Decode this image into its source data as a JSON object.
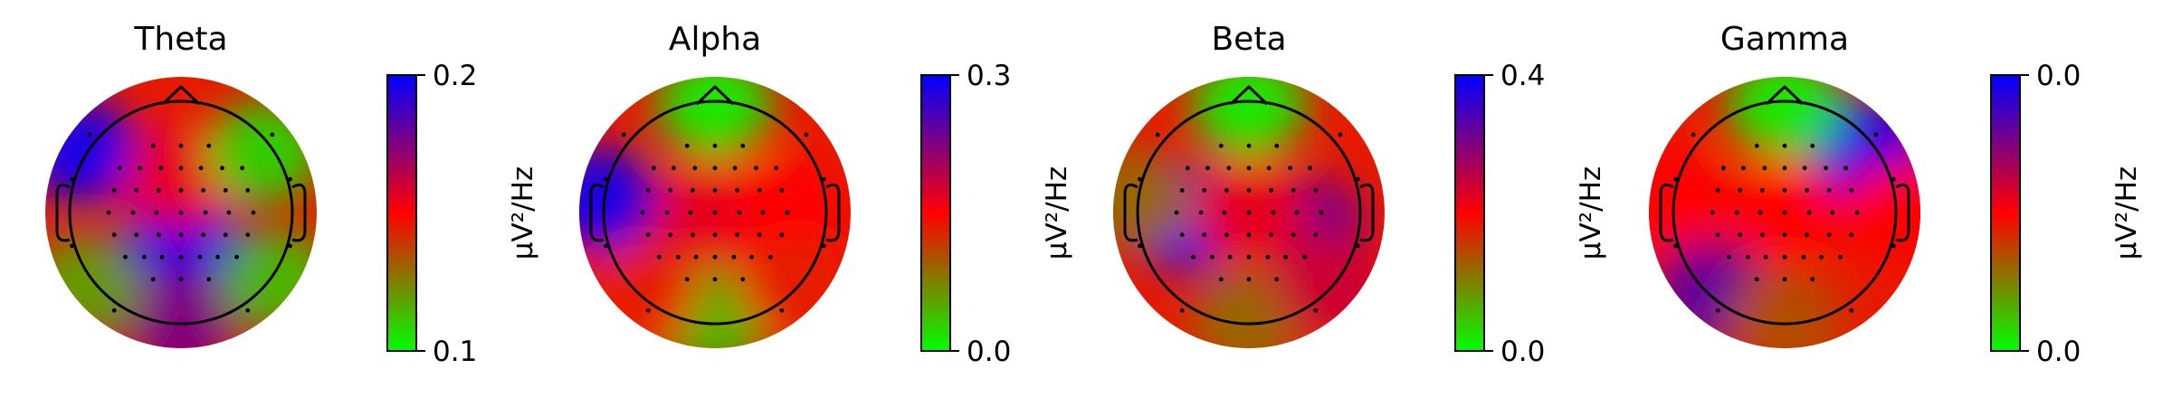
{
  "chart_data": [
    {
      "type": "heatmap",
      "subtype": "scalp-topomap",
      "title": "Theta",
      "colorbar": {
        "min": "0.1",
        "max": "0.2",
        "unit": "µV²/Hz"
      },
      "hotspots": [
        {
          "region": "left-frontal",
          "level": 0.95
        },
        {
          "region": "center-parietal",
          "level": 0.95
        },
        {
          "region": "occipital",
          "level": 0.75
        },
        {
          "region": "central-strip",
          "level": 0.55
        },
        {
          "region": "right-frontal",
          "level": 0.1
        },
        {
          "region": "left-temporal-low",
          "level": 0.2
        },
        {
          "region": "right-temporal-low",
          "level": 0.15
        }
      ]
    },
    {
      "type": "heatmap",
      "subtype": "scalp-topomap",
      "title": "Alpha",
      "colorbar": {
        "min": "0.0",
        "max": "0.3",
        "unit": "µV²/Hz"
      },
      "hotspots": [
        {
          "region": "left-temporal",
          "level": 0.95
        },
        {
          "region": "center",
          "level": 0.55
        },
        {
          "region": "right-central",
          "level": 0.5
        },
        {
          "region": "frontal",
          "level": 0.05
        },
        {
          "region": "occipital",
          "level": 0.15
        },
        {
          "region": "lower-left",
          "level": 0.45
        },
        {
          "region": "lower-right",
          "level": 0.45
        }
      ]
    },
    {
      "type": "heatmap",
      "subtype": "scalp-topomap",
      "title": "Beta",
      "colorbar": {
        "min": "0.0",
        "max": "0.4",
        "unit": "µV²/Hz"
      },
      "hotspots": [
        {
          "region": "left-central",
          "level": 0.95
        },
        {
          "region": "right-parietal",
          "level": 0.75
        },
        {
          "region": "center",
          "level": 0.55
        },
        {
          "region": "frontal",
          "level": 0.05
        },
        {
          "region": "occipital",
          "level": 0.3
        },
        {
          "region": "left-temporal",
          "level": 0.3
        },
        {
          "region": "lower-right",
          "level": 0.6
        }
      ]
    },
    {
      "type": "heatmap",
      "subtype": "scalp-topomap",
      "title": "Gamma",
      "colorbar": {
        "min": "0.0",
        "max": "0.0",
        "unit": "µV²/Hz"
      },
      "hotspots": [
        {
          "region": "right-frontal",
          "level": 0.95
        },
        {
          "region": "lower-left",
          "level": 0.8
        },
        {
          "region": "center",
          "level": 0.5
        },
        {
          "region": "frontal",
          "level": 0.05
        },
        {
          "region": "left-temporal",
          "level": 0.5
        },
        {
          "region": "right-temporal",
          "level": 0.5
        },
        {
          "region": "occipital",
          "level": 0.35
        }
      ]
    }
  ],
  "colormap": [
    "#00ff00",
    "#ff0000",
    "#0000ff"
  ],
  "electrode_color": "#000000"
}
